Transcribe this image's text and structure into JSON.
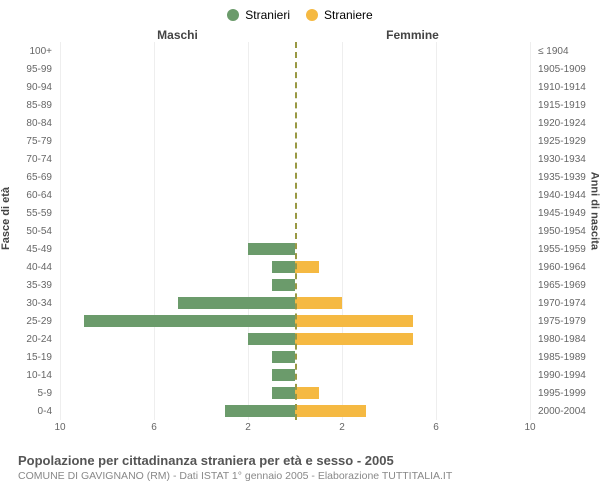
{
  "chart": {
    "type": "population-pyramid",
    "legend": [
      {
        "label": "Stranieri",
        "color": "#6b9b6b"
      },
      {
        "label": "Straniere",
        "color": "#f5b942"
      }
    ],
    "column_headers": {
      "left": "Maschi",
      "right": "Femmine"
    },
    "yaxis_left_title": "Fasce di età",
    "yaxis_right_title": "Anni di nascita",
    "x_max": 10,
    "x_ticks": [
      10,
      6,
      2,
      2,
      6,
      10
    ],
    "age_groups": [
      {
        "age": "100+",
        "birth": "≤ 1904",
        "m": 0,
        "f": 0
      },
      {
        "age": "95-99",
        "birth": "1905-1909",
        "m": 0,
        "f": 0
      },
      {
        "age": "90-94",
        "birth": "1910-1914",
        "m": 0,
        "f": 0
      },
      {
        "age": "85-89",
        "birth": "1915-1919",
        "m": 0,
        "f": 0
      },
      {
        "age": "80-84",
        "birth": "1920-1924",
        "m": 0,
        "f": 0
      },
      {
        "age": "75-79",
        "birth": "1925-1929",
        "m": 0,
        "f": 0
      },
      {
        "age": "70-74",
        "birth": "1930-1934",
        "m": 0,
        "f": 0
      },
      {
        "age": "65-69",
        "birth": "1935-1939",
        "m": 0,
        "f": 0
      },
      {
        "age": "60-64",
        "birth": "1940-1944",
        "m": 0,
        "f": 0
      },
      {
        "age": "55-59",
        "birth": "1945-1949",
        "m": 0,
        "f": 0
      },
      {
        "age": "50-54",
        "birth": "1950-1954",
        "m": 0,
        "f": 0
      },
      {
        "age": "45-49",
        "birth": "1955-1959",
        "m": 2,
        "f": 0
      },
      {
        "age": "40-44",
        "birth": "1960-1964",
        "m": 1,
        "f": 1
      },
      {
        "age": "35-39",
        "birth": "1965-1969",
        "m": 1,
        "f": 0
      },
      {
        "age": "30-34",
        "birth": "1970-1974",
        "m": 5,
        "f": 2
      },
      {
        "age": "25-29",
        "birth": "1975-1979",
        "m": 9,
        "f": 5
      },
      {
        "age": "20-24",
        "birth": "1980-1984",
        "m": 2,
        "f": 5
      },
      {
        "age": "15-19",
        "birth": "1985-1989",
        "m": 1,
        "f": 0
      },
      {
        "age": "10-14",
        "birth": "1990-1994",
        "m": 1,
        "f": 0
      },
      {
        "age": "5-9",
        "birth": "1995-1999",
        "m": 1,
        "f": 1
      },
      {
        "age": "0-4",
        "birth": "2000-2004",
        "m": 3,
        "f": 3
      }
    ],
    "bar_colors": {
      "male": "#6b9b6b",
      "female": "#f5b942"
    },
    "background_color": "#ffffff",
    "grid_color": "#eeeeee",
    "centerline_color": "#999944"
  },
  "footer": {
    "title": "Popolazione per cittadinanza straniera per età e sesso - 2005",
    "subtitle": "COMUNE DI GAVIGNANO (RM) - Dati ISTAT 1° gennaio 2005 - Elaborazione TUTTITALIA.IT"
  }
}
